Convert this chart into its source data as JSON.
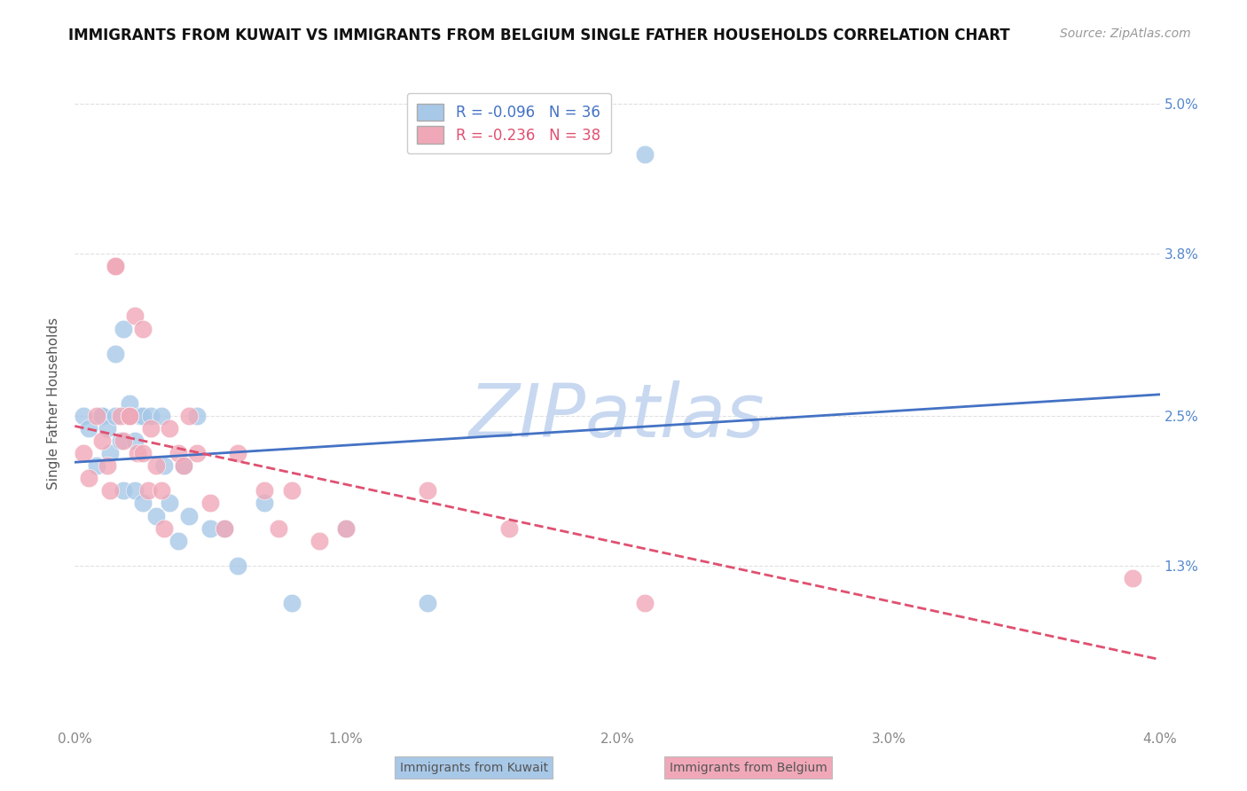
{
  "title": "IMMIGRANTS FROM KUWAIT VS IMMIGRANTS FROM BELGIUM SINGLE FATHER HOUSEHOLDS CORRELATION CHART",
  "source": "Source: ZipAtlas.com",
  "ylabel": "Single Father Households",
  "xlim": [
    0.0,
    0.04
  ],
  "ylim": [
    0.0,
    0.052
  ],
  "xticks": [
    0.0,
    0.01,
    0.02,
    0.03,
    0.04
  ],
  "xtick_labels": [
    "0.0%",
    "1.0%",
    "2.0%",
    "3.0%",
    "4.0%"
  ],
  "yticks": [
    0.013,
    0.025,
    0.038,
    0.05
  ],
  "ytick_labels": [
    "1.3%",
    "2.5%",
    "3.8%",
    "5.0%"
  ],
  "watermark": "ZIPatlas",
  "legend_kuwait": "R = -0.096   N = 36",
  "legend_belgium": "R = -0.236   N = 38",
  "color_kuwait": "#a8c8e8",
  "color_belgium": "#f0a8b8",
  "line_color_kuwait": "#4472c4",
  "line_color_belgium": "#e05070",
  "kuwait_x": [
    0.0003,
    0.0005,
    0.0008,
    0.001,
    0.001,
    0.0012,
    0.0013,
    0.0015,
    0.0015,
    0.0017,
    0.0018,
    0.0018,
    0.002,
    0.002,
    0.0022,
    0.0022,
    0.0024,
    0.0025,
    0.0025,
    0.0028,
    0.003,
    0.0032,
    0.0033,
    0.0035,
    0.0038,
    0.004,
    0.0042,
    0.0045,
    0.005,
    0.0055,
    0.006,
    0.007,
    0.008,
    0.01,
    0.013,
    0.021
  ],
  "kuwait_y": [
    0.025,
    0.024,
    0.021,
    0.025,
    0.025,
    0.024,
    0.022,
    0.03,
    0.025,
    0.023,
    0.032,
    0.019,
    0.026,
    0.025,
    0.023,
    0.019,
    0.025,
    0.025,
    0.018,
    0.025,
    0.017,
    0.025,
    0.021,
    0.018,
    0.015,
    0.021,
    0.017,
    0.025,
    0.016,
    0.016,
    0.013,
    0.018,
    0.01,
    0.016,
    0.01,
    0.046
  ],
  "belgium_x": [
    0.0003,
    0.0005,
    0.0008,
    0.001,
    0.0012,
    0.0013,
    0.0015,
    0.0015,
    0.0017,
    0.0018,
    0.002,
    0.002,
    0.0022,
    0.0023,
    0.0025,
    0.0025,
    0.0027,
    0.0028,
    0.003,
    0.0032,
    0.0033,
    0.0035,
    0.0038,
    0.004,
    0.0042,
    0.0045,
    0.005,
    0.0055,
    0.006,
    0.007,
    0.0075,
    0.008,
    0.009,
    0.01,
    0.013,
    0.016,
    0.021,
    0.039
  ],
  "belgium_y": [
    0.022,
    0.02,
    0.025,
    0.023,
    0.021,
    0.019,
    0.037,
    0.037,
    0.025,
    0.023,
    0.025,
    0.025,
    0.033,
    0.022,
    0.032,
    0.022,
    0.019,
    0.024,
    0.021,
    0.019,
    0.016,
    0.024,
    0.022,
    0.021,
    0.025,
    0.022,
    0.018,
    0.016,
    0.022,
    0.019,
    0.016,
    0.019,
    0.015,
    0.016,
    0.019,
    0.016,
    0.01,
    0.012
  ],
  "title_fontsize": 12,
  "axis_label_fontsize": 11,
  "tick_fontsize": 11,
  "legend_fontsize": 12,
  "source_fontsize": 10,
  "watermark_color": "#c8d8f0",
  "watermark_fontsize": 60,
  "grid_color": "#e0e0e0",
  "tick_color_y": "#5588cc",
  "tick_color_x": "#888888",
  "ylabel_color": "#555555"
}
